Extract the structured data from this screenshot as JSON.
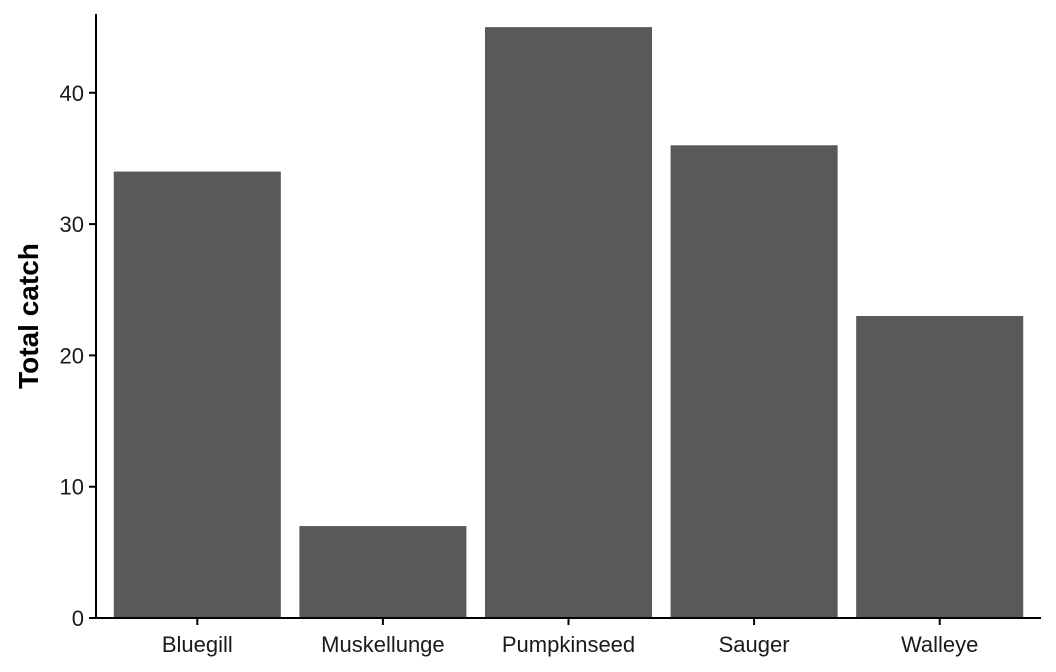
{
  "chart_data": {
    "type": "bar",
    "title": "",
    "xlabel": "",
    "ylabel": "Total catch",
    "categories": [
      "Bluegill",
      "Muskellunge",
      "Pumpkinseed",
      "Sauger",
      "Walleye"
    ],
    "values": [
      34,
      7,
      45,
      36,
      23
    ],
    "ylim": [
      0,
      46
    ],
    "yticks": [
      0,
      10,
      20,
      30,
      40
    ],
    "grid": false,
    "legend": "none",
    "bar_color": "#595959",
    "axis_color": "#000000"
  }
}
